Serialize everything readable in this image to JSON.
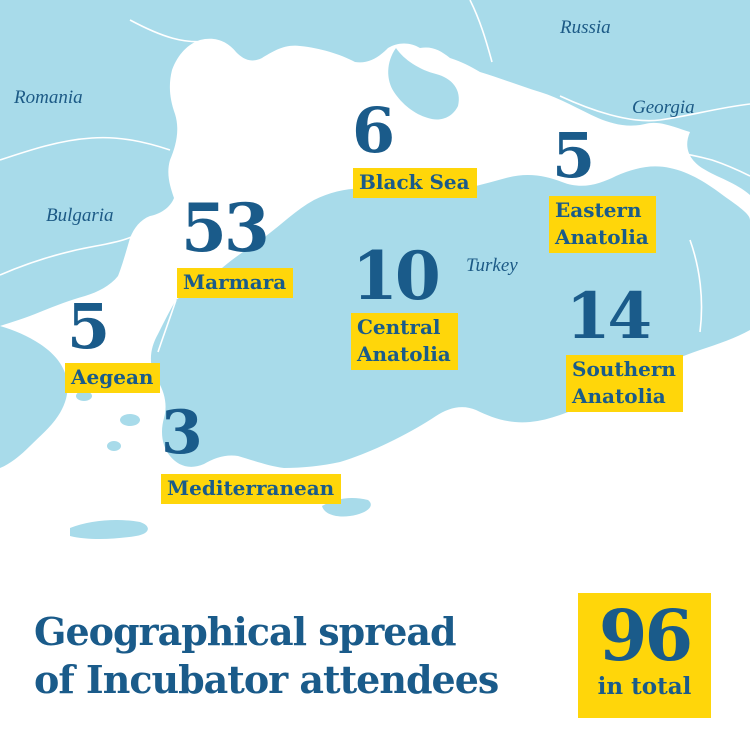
{
  "map": {
    "countries": {
      "russia": "Russia",
      "romania": "Romania",
      "georgia": "Georgia",
      "bulgaria": "Bulgaria",
      "turkey": "Turkey"
    },
    "regions": [
      {
        "key": "black-sea",
        "count": "6",
        "label_lines": [
          "Black Sea"
        ]
      },
      {
        "key": "eastern-anatolia",
        "count": "5",
        "label_lines": [
          "Eastern",
          "Anatolia"
        ]
      },
      {
        "key": "marmara",
        "count": "53",
        "label_lines": [
          "Marmara"
        ]
      },
      {
        "key": "central-anatolia",
        "count": "10",
        "label_lines": [
          "Central",
          "Anatolia"
        ]
      },
      {
        "key": "southern-anatolia",
        "count": "14",
        "label_lines": [
          "Southern",
          "Anatolia"
        ]
      },
      {
        "key": "aegean",
        "count": "5",
        "label_lines": [
          "Aegean"
        ]
      },
      {
        "key": "mediterranean",
        "count": "3",
        "label_lines": [
          "Mediterranean"
        ]
      }
    ]
  },
  "title": {
    "line1": "Geographical spread",
    "line2": "of Incubator attendees"
  },
  "total": {
    "value": "96",
    "label": "in total"
  },
  "colors": {
    "land": "#a8dbea",
    "sea": "#ffffff",
    "text": "#1a5b8a",
    "highlight": "#ffd60a",
    "border": "#ffffff"
  }
}
